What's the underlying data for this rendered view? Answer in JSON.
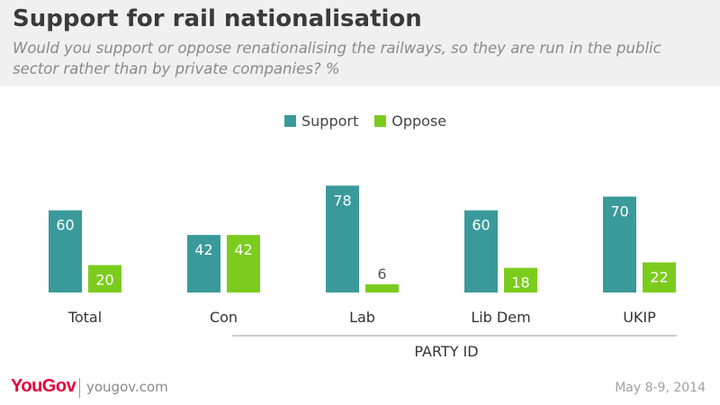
{
  "header": {
    "title": "Support for rail nationalisation",
    "subtitle": "Would you support or oppose renationalising the railways, so they are run in the public sector rather than by private companies? %"
  },
  "colors": {
    "support": "#3a9a9a",
    "oppose": "#7ccc1e"
  },
  "chart_data": {
    "type": "bar",
    "categories": [
      "Total",
      "Con",
      "Lab",
      "Lib Dem",
      "UKIP"
    ],
    "series": [
      {
        "name": "Support",
        "values": [
          60,
          42,
          78,
          60,
          70
        ]
      },
      {
        "name": "Oppose",
        "values": [
          20,
          42,
          6,
          18,
          22
        ]
      }
    ],
    "group_label": "PARTY ID",
    "legend_position": "top-center",
    "grid": false,
    "ylim": [
      0,
      80
    ]
  },
  "footer": {
    "logo": "YouGov",
    "url": "yougov.com",
    "date": "May 8-9, 2014"
  }
}
